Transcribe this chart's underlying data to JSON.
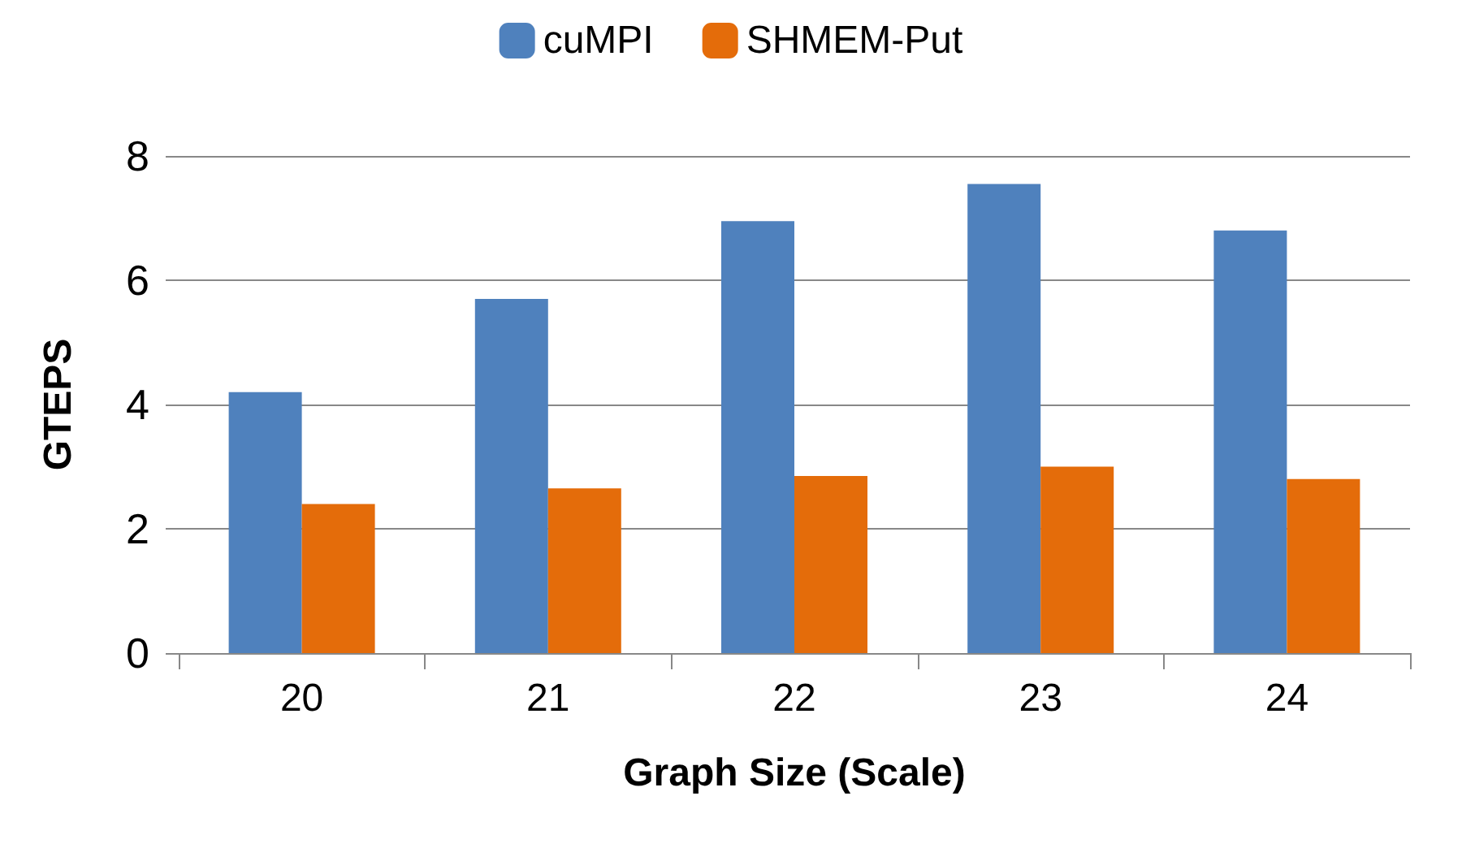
{
  "chart_data": {
    "type": "bar",
    "xlabel": "Graph Size (Scale)",
    "ylabel": "GTEPS",
    "categories": [
      "20",
      "21",
      "22",
      "23",
      "24"
    ],
    "series": [
      {
        "name": "cuMPI",
        "color": "#4f81bd",
        "values": [
          4.2,
          5.7,
          6.95,
          7.55,
          6.8
        ]
      },
      {
        "name": "SHMEM-Put",
        "color": "#e46c0a",
        "values": [
          2.4,
          2.65,
          2.85,
          3.0,
          2.8
        ]
      }
    ],
    "ylim": [
      0,
      8
    ],
    "yticks": [
      0,
      2,
      4,
      6,
      8
    ],
    "grid": "y",
    "legend": "top"
  }
}
